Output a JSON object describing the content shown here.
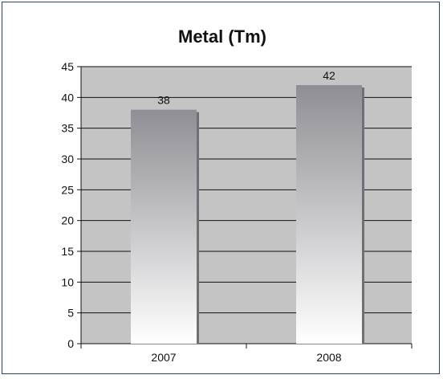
{
  "chart_data": {
    "type": "bar",
    "title": "Metal (Tm)",
    "categories": [
      "2007",
      "2008"
    ],
    "values": [
      38,
      42
    ],
    "xlabel": "",
    "ylabel": "",
    "ylim": [
      0,
      45
    ],
    "yticks": [
      "0",
      "5",
      "10",
      "15",
      "20",
      "25",
      "30",
      "35",
      "40",
      "45"
    ],
    "data_labels": [
      "38",
      "42"
    ],
    "grid": true,
    "legend": "none"
  },
  "colors": {
    "plot_background": "#c4c4c4",
    "bar_top": "#8e8e94",
    "bar_bottom": "#ffffff",
    "bar_shadow": "#6f6f74",
    "grid_line": "#111111",
    "frame_border": "#2b3f7a"
  }
}
